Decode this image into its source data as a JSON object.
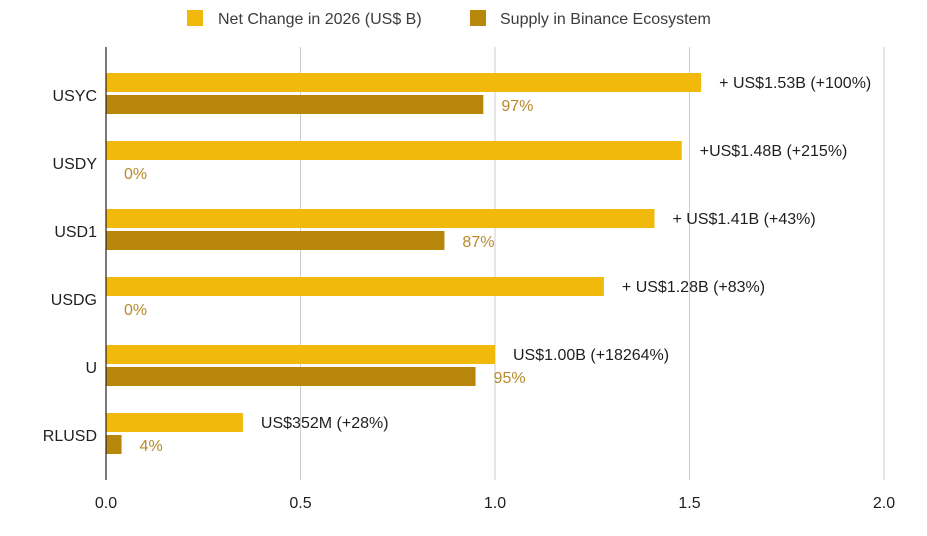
{
  "chart_data": {
    "type": "bar",
    "orientation": "horizontal",
    "categories": [
      "USYC",
      "USDY",
      "USD1",
      "USDG",
      "U",
      "RLUSD"
    ],
    "series": [
      {
        "name": "Net Change in 2026 (US$ B)",
        "color": "#F0B90B",
        "values": [
          1.53,
          1.48,
          1.41,
          1.28,
          1.0,
          0.352
        ],
        "labels": [
          "+ US$1.53B (+100%)",
          "+US$1.48B (+215%)",
          "+ US$1.41B (+43%)",
          "+ US$1.28B (+83%)",
          "US$1.00B (+18264%)",
          "US$352M (+28%)"
        ]
      },
      {
        "name": "Supply in Binance Ecosystem",
        "color": "#B8860B",
        "label_color": "#B8892A",
        "values": [
          0.97,
          0,
          0.87,
          0,
          0.95,
          0.04
        ],
        "labels": [
          "97%",
          "0%",
          "87%",
          "0%",
          "95%",
          "4%"
        ]
      }
    ],
    "xlim": [
      0,
      2.0
    ],
    "xticks": [
      "0.0",
      "0.5",
      "1.0",
      "1.5",
      "2.0"
    ],
    "grid": true,
    "legend_position": "top",
    "title": "",
    "xlabel": "",
    "ylabel": ""
  }
}
